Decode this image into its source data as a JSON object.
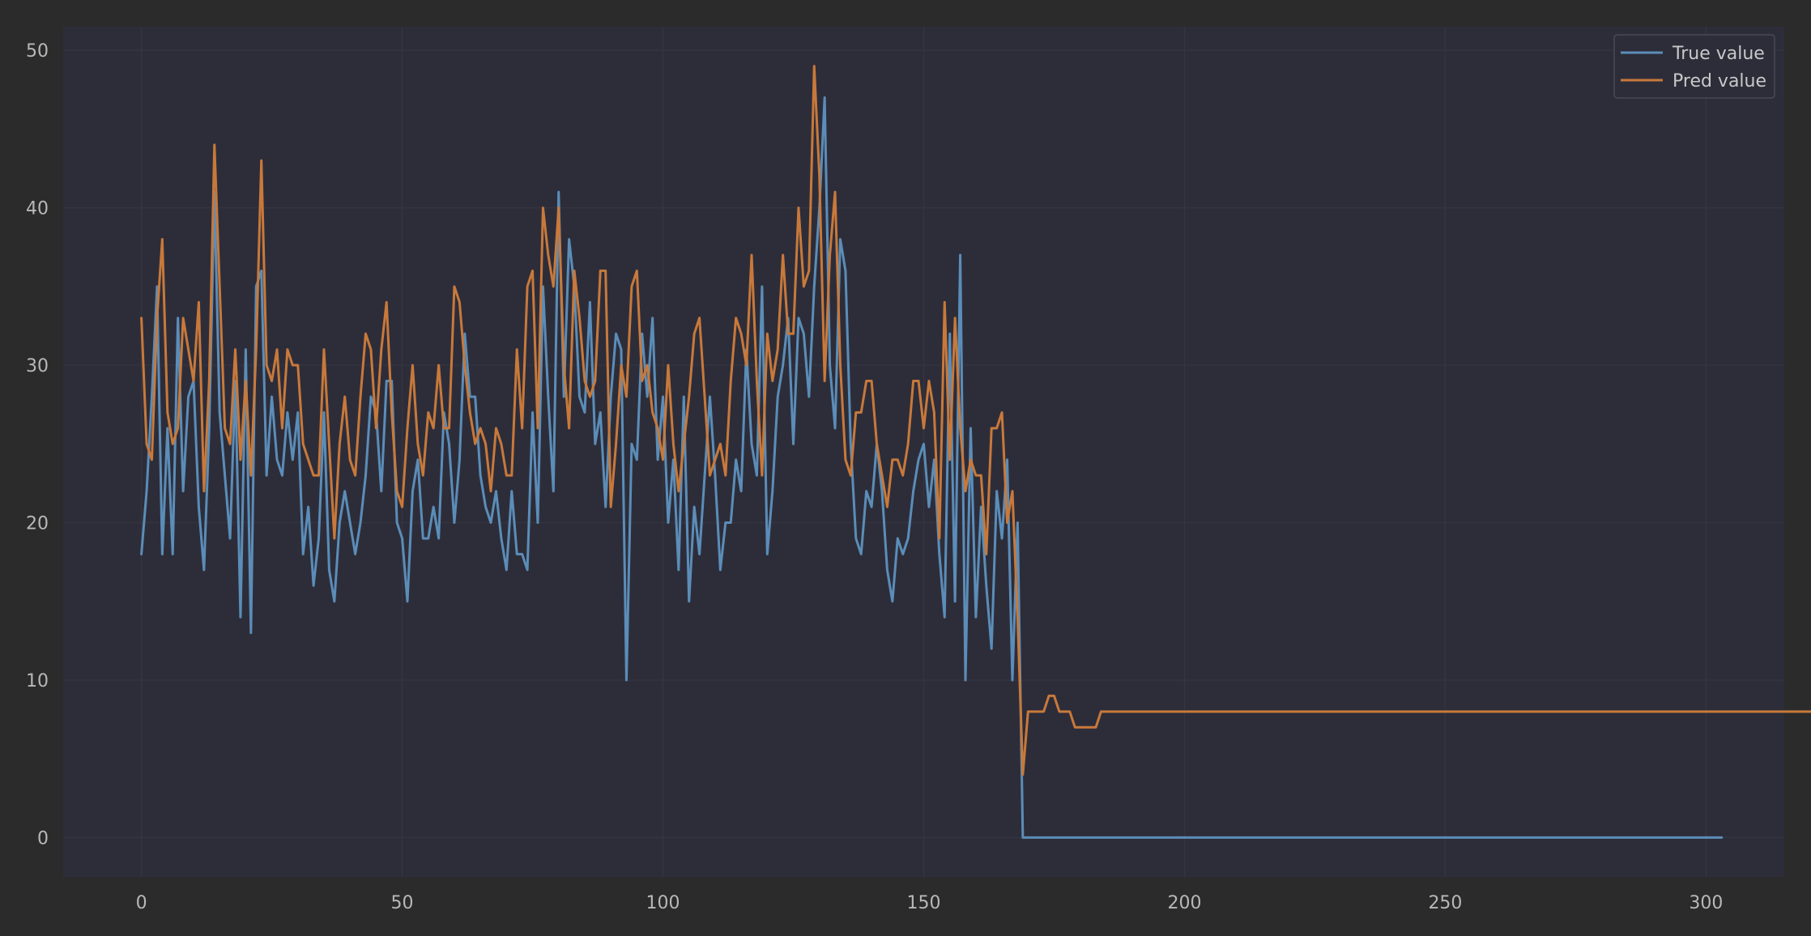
{
  "theme": {
    "background": "#2b2b2b",
    "plot_background": "#2d2d3a",
    "grid_color": "#35353f",
    "tick_color": "#b8b8b8",
    "legend_background": "#2d2d3a",
    "legend_border": "#4a4a55"
  },
  "chart_data": {
    "type": "line",
    "title": "",
    "xlabel": "",
    "ylabel": "",
    "xlim": [
      -15,
      315
    ],
    "ylim": [
      -2.5,
      51.5
    ],
    "grid": true,
    "legend_position": "top-right",
    "x_ticks": [
      0,
      50,
      100,
      150,
      200,
      250,
      300
    ],
    "y_ticks": [
      0,
      10,
      20,
      30,
      40,
      50
    ],
    "series": [
      {
        "name": "True value",
        "color": "#5b8db8",
        "values": [
          18,
          22,
          28,
          35,
          18,
          26,
          18,
          33,
          22,
          28,
          29,
          21,
          17,
          26,
          41,
          27,
          23,
          19,
          29,
          14,
          31,
          13,
          35,
          36,
          23,
          28,
          24,
          23,
          27,
          24,
          27,
          18,
          21,
          16,
          19,
          27,
          17,
          15,
          20,
          22,
          20,
          18,
          20,
          23,
          28,
          27,
          22,
          29,
          29,
          20,
          19,
          15,
          22,
          24,
          19,
          19,
          21,
          19,
          27,
          25,
          20,
          24,
          32,
          28,
          28,
          23,
          21,
          20,
          22,
          19,
          17,
          22,
          18,
          18,
          17,
          27,
          20,
          35,
          28,
          22,
          41,
          28,
          38,
          35,
          28,
          27,
          34,
          25,
          27,
          21,
          28,
          32,
          31,
          10,
          25,
          24,
          32,
          28,
          33,
          24,
          28,
          20,
          24,
          17,
          28,
          15,
          21,
          18,
          23,
          28,
          23,
          17,
          20,
          20,
          24,
          22,
          31,
          25,
          23,
          35,
          18,
          22,
          28,
          30,
          33,
          25,
          33,
          32,
          28,
          35,
          40,
          47,
          30,
          26,
          38,
          36,
          25,
          19,
          18,
          22,
          21,
          25,
          22,
          17,
          15,
          19,
          18,
          19,
          22,
          24,
          25,
          21,
          24,
          18,
          14,
          32,
          15,
          37,
          10,
          26,
          14,
          21,
          16,
          12,
          22,
          19,
          24,
          10,
          20,
          0,
          0,
          0,
          0,
          0,
          0,
          0,
          0,
          0,
          0,
          0,
          0,
          0,
          0,
          0,
          0,
          0,
          0,
          0,
          0,
          0,
          0,
          0,
          0,
          0,
          0,
          0,
          0,
          0,
          0,
          0,
          0,
          0,
          0,
          0,
          0,
          0,
          0,
          0,
          0,
          0,
          0,
          0,
          0,
          0,
          0,
          0,
          0,
          0,
          0,
          0,
          0,
          0,
          0,
          0,
          0,
          0,
          0,
          0,
          0,
          0,
          0,
          0,
          0,
          0,
          0,
          0,
          0,
          0,
          0,
          0,
          0,
          0,
          0,
          0,
          0,
          0,
          0,
          0,
          0,
          0,
          0,
          0,
          0,
          0,
          0,
          0,
          0,
          0,
          0,
          0,
          0,
          0,
          0,
          0,
          0,
          0,
          0,
          0,
          0,
          0,
          0,
          0,
          0,
          0,
          0,
          0,
          0,
          0,
          0,
          0,
          0,
          0,
          0,
          0,
          0,
          0,
          0,
          0,
          0,
          0,
          0,
          0,
          0,
          0,
          0,
          0,
          0,
          0,
          0,
          0,
          0,
          0,
          0,
          0
        ]
      },
      {
        "name": "Pred value",
        "color": "#c8793a",
        "values": [
          33,
          25,
          24,
          33,
          38,
          27,
          25,
          26,
          33,
          31,
          29,
          34,
          22,
          29,
          44,
          35,
          26,
          25,
          31,
          24,
          29,
          23,
          31,
          43,
          30,
          29,
          31,
          26,
          31,
          30,
          30,
          25,
          24,
          23,
          23,
          31,
          25,
          19,
          25,
          28,
          24,
          23,
          28,
          32,
          31,
          26,
          31,
          34,
          27,
          22,
          21,
          26,
          30,
          25,
          23,
          27,
          26,
          30,
          26,
          26,
          35,
          34,
          30,
          27,
          25,
          26,
          25,
          22,
          26,
          25,
          23,
          23,
          31,
          26,
          35,
          36,
          26,
          40,
          37,
          35,
          40,
          30,
          26,
          36,
          33,
          29,
          28,
          29,
          36,
          36,
          21,
          25,
          30,
          28,
          35,
          36,
          29,
          30,
          27,
          26,
          24,
          30,
          25,
          22,
          25,
          28,
          32,
          33,
          28,
          23,
          24,
          25,
          23,
          29,
          33,
          32,
          30,
          37,
          29,
          23,
          32,
          29,
          31,
          37,
          32,
          32,
          40,
          35,
          36,
          49,
          42,
          29,
          37,
          41,
          30,
          24,
          23,
          27,
          27,
          29,
          29,
          25,
          23,
          21,
          24,
          24,
          23,
          25,
          29,
          29,
          26,
          29,
          27,
          19,
          34,
          24,
          33,
          26,
          22,
          24,
          23,
          23,
          18,
          26,
          26,
          27,
          20,
          22,
          14,
          4,
          8,
          8,
          8,
          8,
          9,
          9,
          8,
          8,
          8,
          7,
          7,
          7,
          7,
          7,
          8,
          8,
          8,
          8,
          8,
          8,
          8,
          8,
          8,
          8,
          8,
          8,
          8,
          8,
          8,
          8,
          8,
          8,
          8,
          8,
          8,
          8,
          8,
          8,
          8,
          8,
          8,
          8,
          8,
          8,
          8,
          8,
          8,
          8,
          8,
          8,
          8,
          8,
          8,
          8,
          8,
          8,
          8,
          8,
          8,
          8,
          8,
          8,
          8,
          8,
          8,
          8,
          8,
          8,
          8,
          8,
          8,
          8,
          8,
          8,
          8,
          8,
          8,
          8,
          8,
          8,
          8,
          8,
          8,
          8,
          8,
          8,
          8,
          8,
          8,
          8,
          8,
          8,
          8,
          8,
          8,
          8,
          8,
          8,
          8,
          8,
          8,
          8,
          8,
          8,
          8,
          8,
          8,
          8,
          8,
          8,
          8,
          8,
          8,
          8,
          8,
          8,
          8,
          8,
          8,
          8,
          8,
          8,
          8,
          8,
          8,
          8,
          8,
          8,
          8,
          8,
          8,
          8,
          8,
          8,
          8,
          8,
          8,
          8,
          8,
          8,
          8,
          8,
          8,
          8,
          8,
          8,
          8,
          8,
          8,
          8,
          8,
          8,
          8,
          8,
          8,
          8,
          8,
          8,
          8,
          8,
          8
        ]
      }
    ]
  }
}
